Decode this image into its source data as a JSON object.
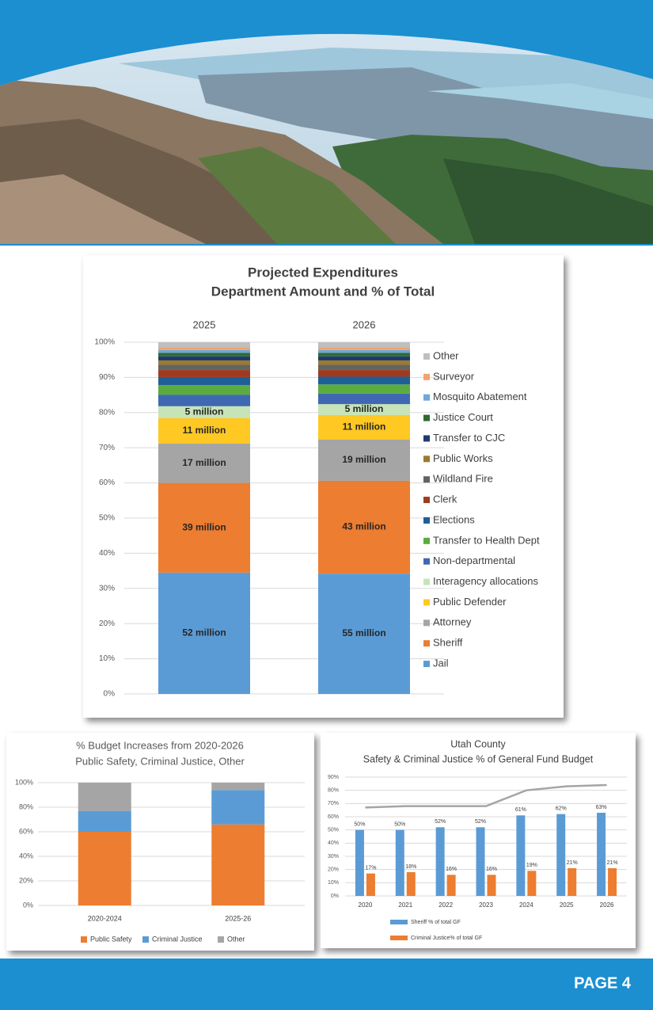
{
  "chart_data": [
    {
      "type": "bar",
      "stacked": true,
      "title": "Projected Expenditures",
      "subtitle": "Department Amount and % of Total",
      "categories": [
        "2025",
        "2026"
      ],
      "ylim": [
        0,
        100
      ],
      "yticks": [
        {
          "value": 0,
          "label": "0%"
        },
        {
          "value": 10,
          "label": "10%"
        },
        {
          "value": 20,
          "label": "20%"
        },
        {
          "value": 30,
          "label": "30%"
        },
        {
          "value": 40,
          "label": "40%"
        },
        {
          "value": 50,
          "label": "50%"
        },
        {
          "value": 60,
          "label": "60%"
        },
        {
          "value": 70,
          "label": "70%"
        },
        {
          "value": 80,
          "label": "80%"
        },
        {
          "value": 90,
          "label": "90%"
        },
        {
          "value": 100,
          "label": "100%"
        }
      ],
      "grid": true,
      "legend": "right",
      "series": [
        {
          "name": "Jail",
          "color": "#5b9bd5",
          "values": [
            34.5,
            34.2
          ],
          "amount_labels": [
            "52 million",
            "55 million"
          ]
        },
        {
          "name": "Sheriff",
          "color": "#ed7d31",
          "values": [
            25.5,
            26.4
          ],
          "amount_labels": [
            "39 million",
            "43 million"
          ]
        },
        {
          "name": "Attorney",
          "color": "#a5a5a5",
          "values": [
            11.2,
            11.7
          ],
          "amount_labels": [
            "17 million",
            "19 million"
          ]
        },
        {
          "name": "Public Defender",
          "color": "#ffc822",
          "values": [
            7.2,
            7.0
          ],
          "amount_labels": [
            "11 million",
            "11 million"
          ]
        },
        {
          "name": "Interagency allocations",
          "color": "#c6e4b8",
          "values": [
            3.4,
            3.1
          ],
          "amount_labels": [
            "5 million",
            "5 million"
          ]
        },
        {
          "name": "Non-departmental",
          "color": "#4068b2",
          "values": [
            3.3,
            3.0
          ]
        },
        {
          "name": "Transfer to Health Dept",
          "color": "#5aac3e",
          "values": [
            2.7,
            2.6
          ]
        },
        {
          "name": "Elections",
          "color": "#1f5f99",
          "values": [
            2.3,
            2.2
          ]
        },
        {
          "name": "Clerk",
          "color": "#9e3b1f",
          "values": [
            2.0,
            1.9
          ]
        },
        {
          "name": "Wildland Fire",
          "color": "#636363",
          "values": [
            1.5,
            1.5
          ]
        },
        {
          "name": "Public Works",
          "color": "#9c7a2c",
          "values": [
            1.2,
            1.2
          ]
        },
        {
          "name": "Transfer to CJC",
          "color": "#1f3b6e",
          "values": [
            1.2,
            1.2
          ]
        },
        {
          "name": "Justice Court",
          "color": "#2e6b2e",
          "values": [
            1.0,
            1.0
          ]
        },
        {
          "name": "Mosquito Abatement",
          "color": "#6fa8dc",
          "values": [
            0.8,
            0.8
          ]
        },
        {
          "name": "Surveyor",
          "color": "#f4a16b",
          "values": [
            0.8,
            0.8
          ]
        },
        {
          "name": "Other",
          "color": "#bfbfbf",
          "values": [
            1.4,
            1.4
          ]
        }
      ]
    },
    {
      "type": "bar",
      "stacked": true,
      "title": "% Budget Increases from 2020-2026",
      "subtitle": "Public Safety, Criminal Justice, Other",
      "categories": [
        "2020-2024",
        "2025-26"
      ],
      "ylim": [
        0,
        100
      ],
      "yticks": [
        {
          "value": 0,
          "label": "0%"
        },
        {
          "value": 20,
          "label": "20%"
        },
        {
          "value": 40,
          "label": "40%"
        },
        {
          "value": 60,
          "label": "60%"
        },
        {
          "value": 80,
          "label": "80%"
        },
        {
          "value": 100,
          "label": "100%"
        }
      ],
      "grid": true,
      "legend": "bottom",
      "series": [
        {
          "name": "Public Safety",
          "color": "#ed7d31",
          "values": [
            60,
            66
          ]
        },
        {
          "name": "Criminal Justice",
          "color": "#5b9bd5",
          "values": [
            17,
            28
          ]
        },
        {
          "name": "Other",
          "color": "#a5a5a5",
          "values": [
            23,
            6
          ]
        }
      ]
    },
    {
      "type": "bar",
      "stacked": false,
      "title": "Utah County",
      "subtitle": "Safety & Criminal Justice % of General Fund Budget",
      "categories": [
        "2020",
        "2021",
        "2022",
        "2023",
        "2024",
        "2025",
        "2026"
      ],
      "ylim": [
        0,
        90
      ],
      "yticks": [
        {
          "value": 0,
          "label": "0%"
        },
        {
          "value": 10,
          "label": "10%"
        },
        {
          "value": 20,
          "label": "20%"
        },
        {
          "value": 30,
          "label": "30%"
        },
        {
          "value": 40,
          "label": "40%"
        },
        {
          "value": 50,
          "label": "50%"
        },
        {
          "value": 60,
          "label": "60%"
        },
        {
          "value": 70,
          "label": "70%"
        },
        {
          "value": 80,
          "label": "80%"
        },
        {
          "value": 90,
          "label": "90%"
        }
      ],
      "grid": true,
      "legend": "bottom",
      "series": [
        {
          "name": "Sheriff % of total GF",
          "color": "#5b9bd5",
          "values": [
            50,
            50,
            52,
            52,
            61,
            62,
            63
          ],
          "value_labels": [
            "50%",
            "50%",
            "52%",
            "52%",
            "61%",
            "62%",
            "63%"
          ]
        },
        {
          "name": "Criminal Justice% of total GF",
          "color": "#ed7d31",
          "values": [
            17,
            18,
            16,
            16,
            19,
            21,
            21
          ],
          "value_labels": [
            "17%",
            "18%",
            "16%",
            "16%",
            "19%",
            "21%",
            "21%"
          ]
        },
        {
          "type": "line",
          "color": "#a5a5a5",
          "values": [
            67,
            68,
            68,
            68,
            80,
            83,
            84
          ]
        }
      ]
    }
  ],
  "footer": {
    "page": "PAGE 4"
  }
}
